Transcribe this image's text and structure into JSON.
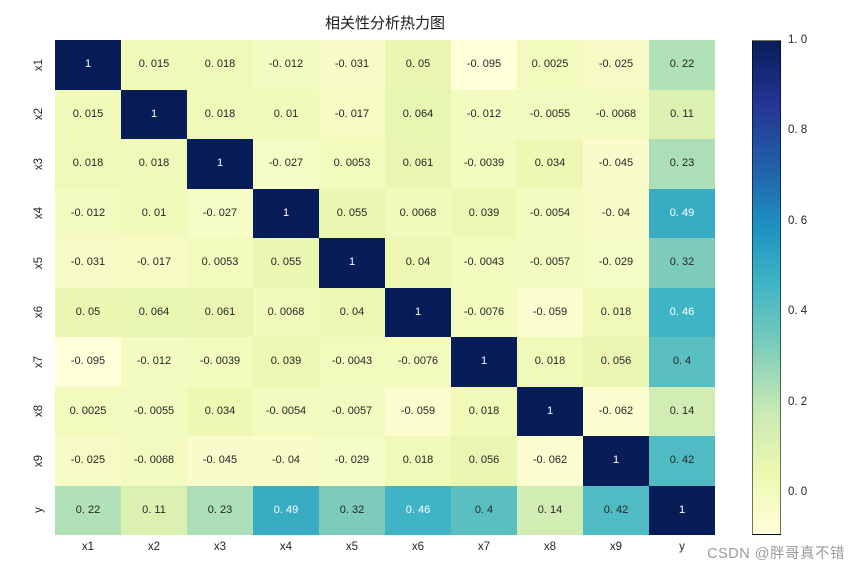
{
  "watermark": {
    "text": "CSDN @胖哥真不错",
    "color": "#9b9b9b"
  },
  "chart_data": {
    "type": "heatmap",
    "title": "相关性分析热力图",
    "labels": [
      "x1",
      "x2",
      "x3",
      "x4",
      "x5",
      "x6",
      "x7",
      "x8",
      "x9",
      "y"
    ],
    "matrix": [
      [
        1,
        0.015,
        0.018,
        -0.012,
        -0.031,
        0.05,
        -0.095,
        0.0025,
        -0.025,
        0.22
      ],
      [
        0.015,
        1,
        0.018,
        0.01,
        -0.017,
        0.064,
        -0.012,
        -0.0055,
        -0.0068,
        0.11
      ],
      [
        0.018,
        0.018,
        1,
        -0.027,
        0.0053,
        0.061,
        -0.0039,
        0.034,
        -0.045,
        0.23
      ],
      [
        -0.012,
        0.01,
        -0.027,
        1,
        0.055,
        0.0068,
        0.039,
        -0.0054,
        -0.04,
        0.49
      ],
      [
        -0.031,
        -0.017,
        0.0053,
        0.055,
        1,
        0.04,
        -0.0043,
        -0.0057,
        -0.029,
        0.32
      ],
      [
        0.05,
        0.064,
        0.061,
        0.0068,
        0.04,
        1,
        -0.0076,
        -0.059,
        0.018,
        0.46
      ],
      [
        -0.095,
        -0.012,
        -0.0039,
        0.039,
        -0.0043,
        -0.0076,
        1,
        0.018,
        0.056,
        0.4
      ],
      [
        0.0025,
        -0.0055,
        0.034,
        -0.0054,
        -0.0057,
        -0.059,
        0.018,
        1,
        -0.062,
        0.14
      ],
      [
        -0.025,
        -0.0068,
        -0.045,
        -0.04,
        -0.029,
        0.018,
        0.056,
        -0.062,
        1,
        0.42
      ],
      [
        0.22,
        0.11,
        0.23,
        0.49,
        0.32,
        0.46,
        0.4,
        0.14,
        0.42,
        1
      ]
    ],
    "vmin": -0.095,
    "vmax": 1.0,
    "colormap": "YlGnBu",
    "colormap_stops": [
      "#ffffd9",
      "#edf8b1",
      "#c7e9b4",
      "#7fcdbb",
      "#41b6c4",
      "#1d91c0",
      "#225ea8",
      "#253494",
      "#081d58"
    ],
    "colorbar_ticks": [
      1.0,
      0.8,
      0.6,
      0.4,
      0.2,
      0.0
    ],
    "legend_position": "right",
    "grid": false,
    "annotation_text_colors": {
      "light_cells": "#262626",
      "dark_cells": "#ffffff"
    }
  }
}
